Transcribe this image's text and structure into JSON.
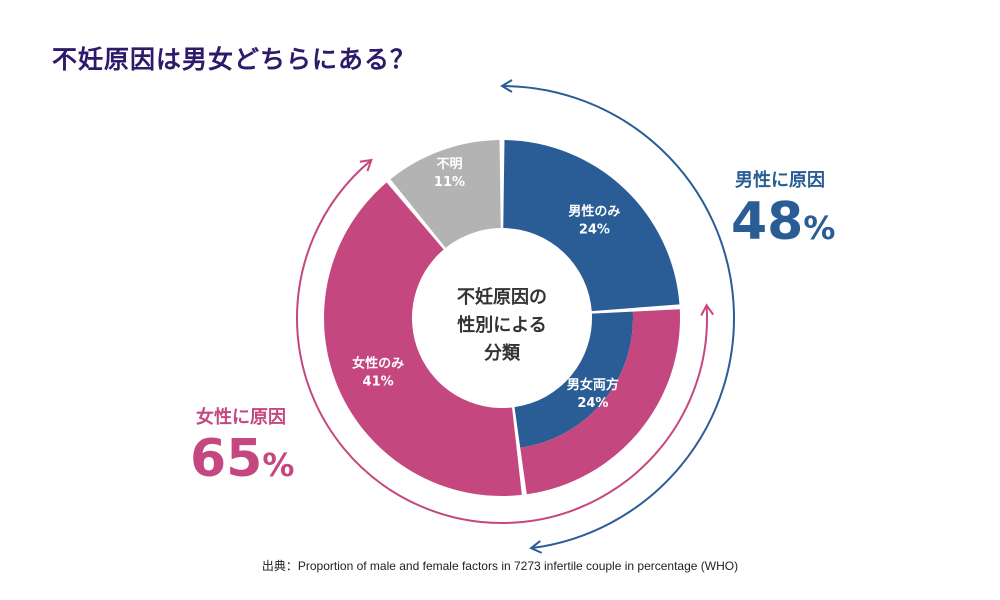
{
  "title": "不妊原因は男女どちらにある？",
  "center_label": [
    "不妊原因の",
    "性別による",
    "分類"
  ],
  "male_total": {
    "label": "男性に原因",
    "value": "48",
    "unit": "%"
  },
  "female_total": {
    "label": "女性に原因",
    "value": "65",
    "unit": "%"
  },
  "source": "出典：Proportion of male and female factors in 7273 infertile couple in percentage (WHO)",
  "colors": {
    "male": "#2a5d96",
    "female": "#c54780",
    "unknown": "#b3b3b3",
    "title": "#2e1a6b"
  },
  "chart_data": {
    "type": "pie",
    "segments": [
      {
        "name": "男性のみ",
        "value": 24,
        "label": "24%",
        "color": "#2a5d96",
        "ring": "outer"
      },
      {
        "name": "男女両方",
        "value": 24,
        "label": "24%",
        "color": "#c54780",
        "inner_color": "#2a5d96",
        "ring": "split"
      },
      {
        "name": "女性のみ",
        "value": 41,
        "label": "41%",
        "color": "#c54780",
        "ring": "outer"
      },
      {
        "name": "不明",
        "value": 11,
        "label": "11%",
        "color": "#b3b3b3",
        "ring": "outer"
      }
    ]
  }
}
